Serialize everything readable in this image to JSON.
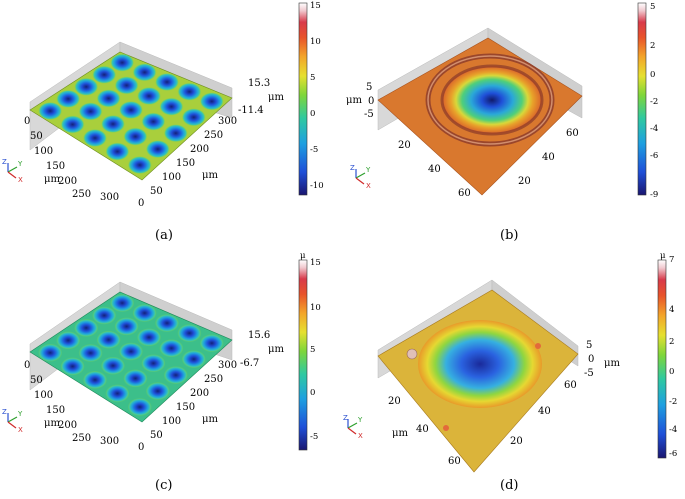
{
  "figure": {
    "panels": [
      {
        "id": "a",
        "caption": "(a)",
        "surface": "dimple-array",
        "z_labels": [
          "15.3",
          "-11.4"
        ],
        "z_unit": "μm",
        "x_ticks": [
          "0",
          "50",
          "100",
          "150",
          "200",
          "250",
          "300"
        ],
        "x_unit": "μm",
        "y_ticks": [
          "0",
          "50",
          "100",
          "150",
          "200",
          "250",
          "300"
        ],
        "y_unit": "μm",
        "colorbar": {
          "title": "",
          "ticks": [
            "15",
            "10",
            "5",
            "0",
            "-5",
            "-10"
          ],
          "min": -11.4,
          "max": 15.3
        },
        "triad": {
          "z": "Z",
          "y": "Y",
          "x": "X"
        }
      },
      {
        "id": "b",
        "caption": "(b)",
        "surface": "single-crater-rim",
        "z_labels": [
          "5",
          "0",
          "-5"
        ],
        "z_unit": "μm",
        "x_ticks": [
          "20",
          "40",
          "60"
        ],
        "y_ticks": [
          "20",
          "40",
          "60"
        ],
        "colorbar": {
          "title": "",
          "ticks": [
            "5",
            "2",
            "0",
            "-2",
            "-4",
            "-6",
            "-9"
          ],
          "min": -9,
          "max": 5
        },
        "triad": {
          "z": "Z",
          "y": "Y",
          "x": "X"
        }
      },
      {
        "id": "c",
        "caption": "(c)",
        "surface": "dimple-array",
        "z_labels": [
          "15.6",
          "-6.7"
        ],
        "z_unit": "μm",
        "x_ticks": [
          "0",
          "50",
          "100",
          "150",
          "200",
          "250",
          "300"
        ],
        "x_unit": "μm",
        "y_ticks": [
          "0",
          "50",
          "100",
          "150",
          "200",
          "250",
          "300"
        ],
        "y_unit": "μm",
        "colorbar": {
          "title": "μ",
          "ticks": [
            "15",
            "10",
            "5",
            "0",
            "-5"
          ],
          "min": -6.7,
          "max": 15.6
        },
        "triad": {
          "z": "Z",
          "y": "Y",
          "x": "X"
        }
      },
      {
        "id": "d",
        "caption": "(d)",
        "surface": "single-crater-flat",
        "z_labels": [
          "5",
          "0",
          "-5"
        ],
        "z_unit": "μm",
        "x_ticks": [
          "20",
          "40",
          "60"
        ],
        "x_unit": "μm",
        "y_ticks": [
          "20",
          "40",
          "60"
        ],
        "colorbar": {
          "title": "μ",
          "ticks": [
            "7",
            "4",
            "2",
            "0",
            "-2",
            "-4",
            "-6"
          ],
          "min": -6.5,
          "max": 7
        },
        "triad": {
          "z": "Z",
          "y": "Y",
          "x": "X"
        }
      }
    ],
    "colormap": [
      "#1a1670",
      "#1f4fd8",
      "#1ea0e0",
      "#2fc9a0",
      "#7ed63a",
      "#e6e030",
      "#f3a52a",
      "#e8532a",
      "#d83a4a",
      "#f1c9cf",
      "#ffffff"
    ]
  }
}
